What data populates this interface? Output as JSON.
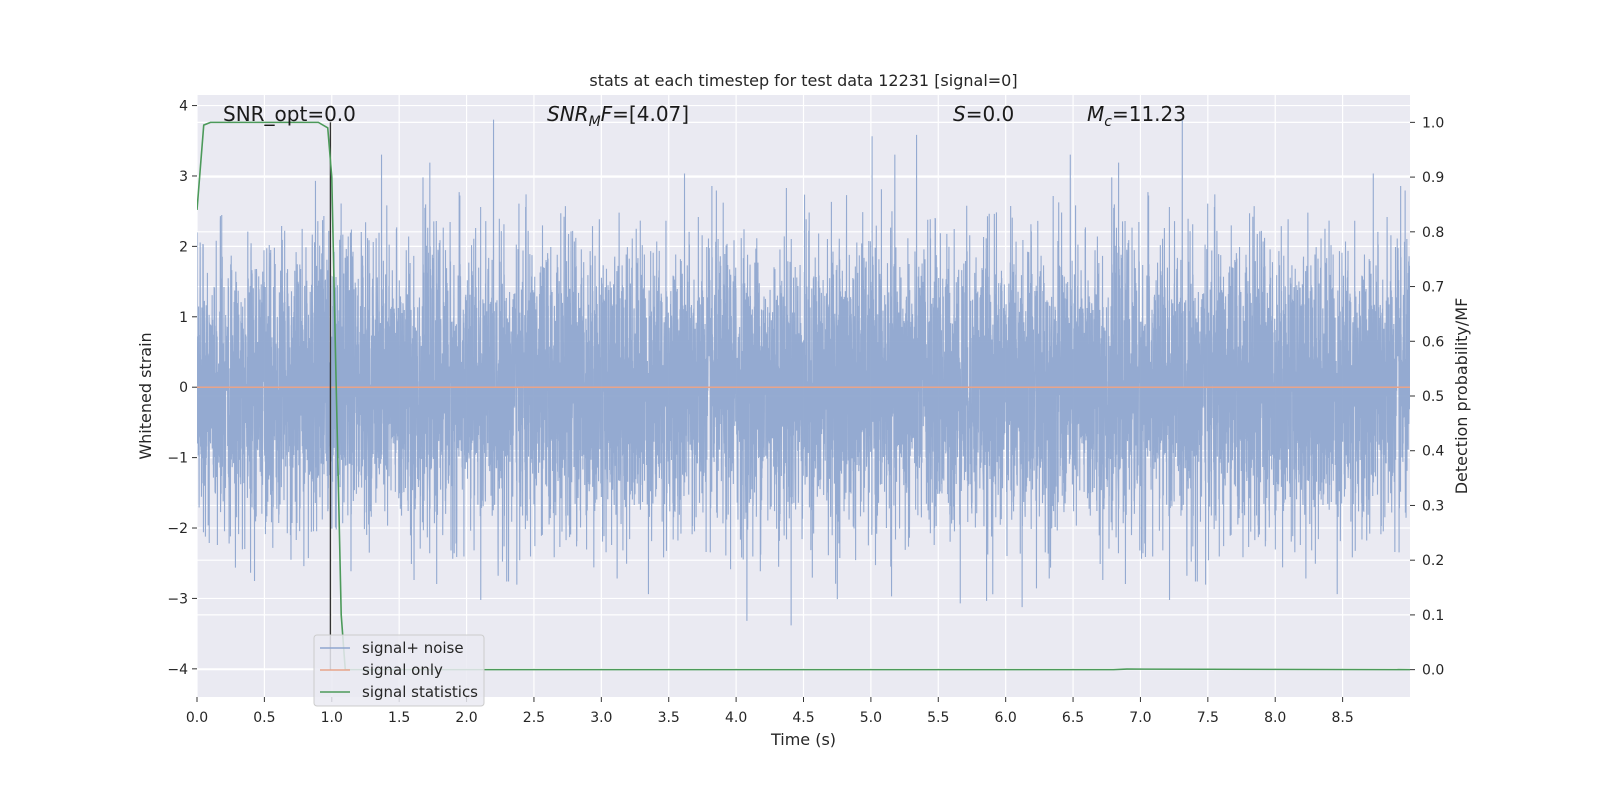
{
  "chart_data": {
    "type": "line",
    "title": "stats at each timestep for test data 12231 [signal=0]",
    "xlabel": "Time (s)",
    "ylabel_left": "Whitened strain",
    "ylabel_right": "Detection probability/MF",
    "xlim": [
      0.0,
      9.0
    ],
    "ylim_left": [
      -4.4,
      4.15
    ],
    "ylim_right": [
      -0.05,
      1.05
    ],
    "x_ticks": [
      0.0,
      0.5,
      1.0,
      1.5,
      2.0,
      2.5,
      3.0,
      3.5,
      4.0,
      4.5,
      5.0,
      5.5,
      6.0,
      6.5,
      7.0,
      7.5,
      8.0,
      8.5
    ],
    "x_tick_labels": [
      "0.0",
      "0.5",
      "1.0",
      "1.5",
      "2.0",
      "2.5",
      "3.0",
      "3.5",
      "4.0",
      "4.5",
      "5.0",
      "5.5",
      "6.0",
      "6.5",
      "7.0",
      "7.5",
      "8.0",
      "8.5"
    ],
    "y_left_ticks": [
      -4,
      -3,
      -2,
      -1,
      0,
      1,
      2,
      3,
      4
    ],
    "y_left_tick_labels": [
      "−4",
      "−3",
      "−2",
      "−1",
      "0",
      "1",
      "2",
      "3",
      "4"
    ],
    "y_right_ticks": [
      0.0,
      0.1,
      0.2,
      0.3,
      0.4,
      0.5,
      0.6,
      0.7,
      0.8,
      0.9,
      1.0
    ],
    "y_right_tick_labels": [
      "0.0",
      "0.1",
      "0.2",
      "0.3",
      "0.4",
      "0.5",
      "0.6",
      "0.7",
      "0.8",
      "0.9",
      "1.0"
    ],
    "grid": true,
    "annotations": {
      "snr_opt": "SNR_opt=0.0",
      "snr_mf_prefix": "SNR",
      "snr_mf_sub": "M",
      "snr_mf_suffix": "F=[4.07]",
      "s_label": "S",
      "s_value": "=0.0",
      "mc_label": "M",
      "mc_sub": "c",
      "mc_value": "=11.23"
    },
    "legend": {
      "location": "lower-left",
      "entries": [
        {
          "label": "signal+ noise",
          "color": "#8fa6cf"
        },
        {
          "label": "signal only",
          "color": "#e8a48a"
        },
        {
          "label": "signal statistics",
          "color": "#4c9a5a"
        }
      ]
    },
    "series": [
      {
        "name": "signal+ noise",
        "axis": "left",
        "color": "#8fa6cf",
        "description_range": [
          -4.0,
          3.8
        ],
        "noise": {
          "sample_rate": 2048,
          "approx_std": 1.0,
          "x_start": 0.0,
          "x_end": 9.0
        }
      },
      {
        "name": "signal only",
        "axis": "left",
        "color": "#e8a48a",
        "x": [
          0.0,
          9.0
        ],
        "y": [
          0.0,
          0.0
        ]
      },
      {
        "name": "signal statistics",
        "axis": "right",
        "color": "#4c9a5a",
        "x": [
          0.0,
          0.05,
          0.1,
          0.2,
          0.5,
          0.9,
          0.97,
          1.0,
          1.03,
          1.07,
          1.1,
          2.0,
          5.0,
          6.8,
          6.9,
          9.0
        ],
        "y": [
          0.84,
          0.995,
          1.0,
          1.0,
          1.0,
          1.0,
          0.99,
          0.9,
          0.55,
          0.1,
          0.0,
          0.0,
          0.0,
          0.0,
          0.001,
          0.0
        ]
      }
    ],
    "vertical_marker": {
      "x": 0.99,
      "color": "#333333"
    }
  }
}
